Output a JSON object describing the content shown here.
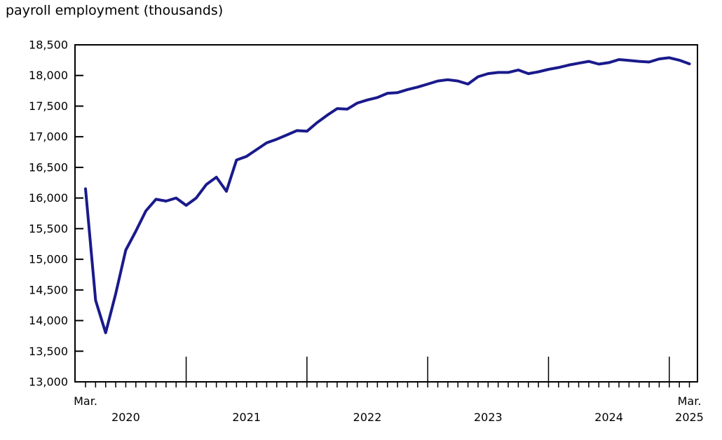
{
  "chart_data": {
    "type": "line",
    "title": "payroll employment (thousands)",
    "frequency": "monthly",
    "x_start": "2020-03",
    "x_end": "2025-03",
    "series": [
      {
        "name": "payroll employment (thousands)",
        "color": "#1a1a8c",
        "values": [
          16150,
          14330,
          13800,
          14440,
          15150,
          15460,
          15790,
          15980,
          15950,
          16000,
          15880,
          16000,
          16220,
          16340,
          16110,
          16620,
          16680,
          16790,
          16900,
          16960,
          17030,
          17100,
          17090,
          17230,
          17350,
          17460,
          17450,
          17550,
          17600,
          17640,
          17710,
          17720,
          17770,
          17810,
          17860,
          17910,
          17930,
          17910,
          17860,
          17980,
          18030,
          18050,
          18050,
          18090,
          18030,
          18060,
          18100,
          18130,
          18170,
          18200,
          18230,
          18185,
          18210,
          18260,
          18245,
          18230,
          18220,
          18270,
          18290,
          18250,
          18190
        ]
      }
    ],
    "ylim": [
      13000,
      18500
    ],
    "y_tick_step": 500,
    "y_tick_labels": [
      "13,000",
      "13,500",
      "14,000",
      "14,500",
      "15,000",
      "15,500",
      "16,000",
      "16,500",
      "17,000",
      "17,500",
      "18,000",
      "18,500"
    ],
    "x_axis": {
      "start_label": "Mar.",
      "end_label": "Mar.",
      "year_labels": [
        "2020",
        "2021",
        "2022",
        "2023",
        "2024",
        "2025"
      ]
    },
    "grid": false,
    "legend": "none",
    "axis_color": "#000000",
    "text_color": "#000000",
    "background_color": "#ffffff"
  }
}
